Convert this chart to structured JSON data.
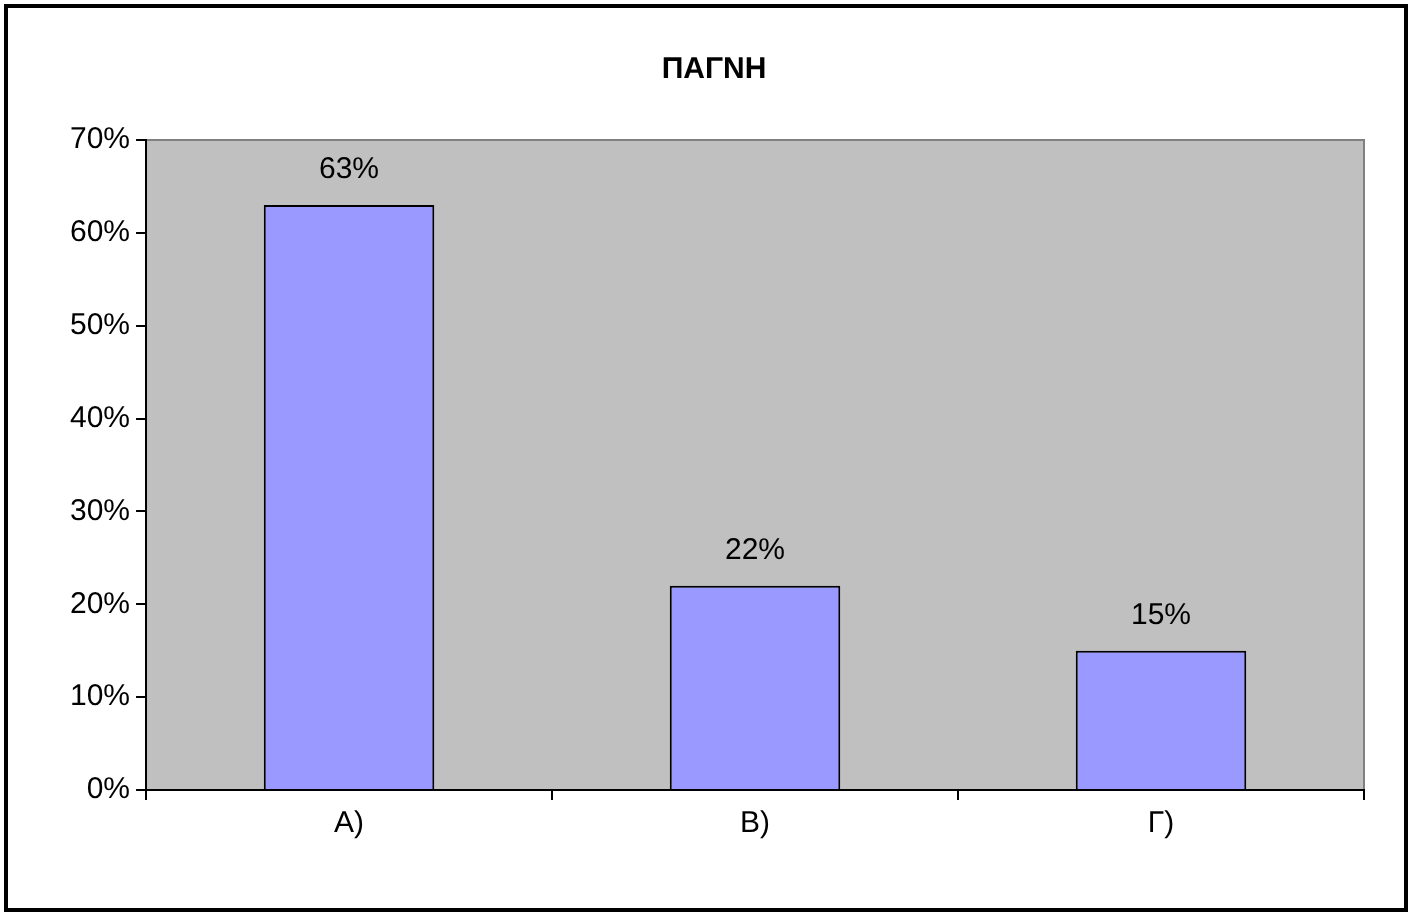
{
  "chart_data": {
    "type": "bar",
    "title": "ΠΑΓΝΗ",
    "categories": [
      "A)",
      "B)",
      "Γ)"
    ],
    "values": [
      63,
      22,
      15
    ],
    "value_labels": [
      "63%",
      "22%",
      "15%"
    ],
    "color": "#9999ff",
    "ylim": [
      0,
      70
    ],
    "yticks": [
      {
        "value": 0,
        "label": "0%"
      },
      {
        "value": 10,
        "label": "10%"
      },
      {
        "value": 20,
        "label": "20%"
      },
      {
        "value": 30,
        "label": "30%"
      },
      {
        "value": 40,
        "label": "40%"
      },
      {
        "value": 50,
        "label": "50%"
      },
      {
        "value": 60,
        "label": "60%"
      },
      {
        "value": 70,
        "label": "70%"
      }
    ],
    "grid": false,
    "legend": false
  }
}
